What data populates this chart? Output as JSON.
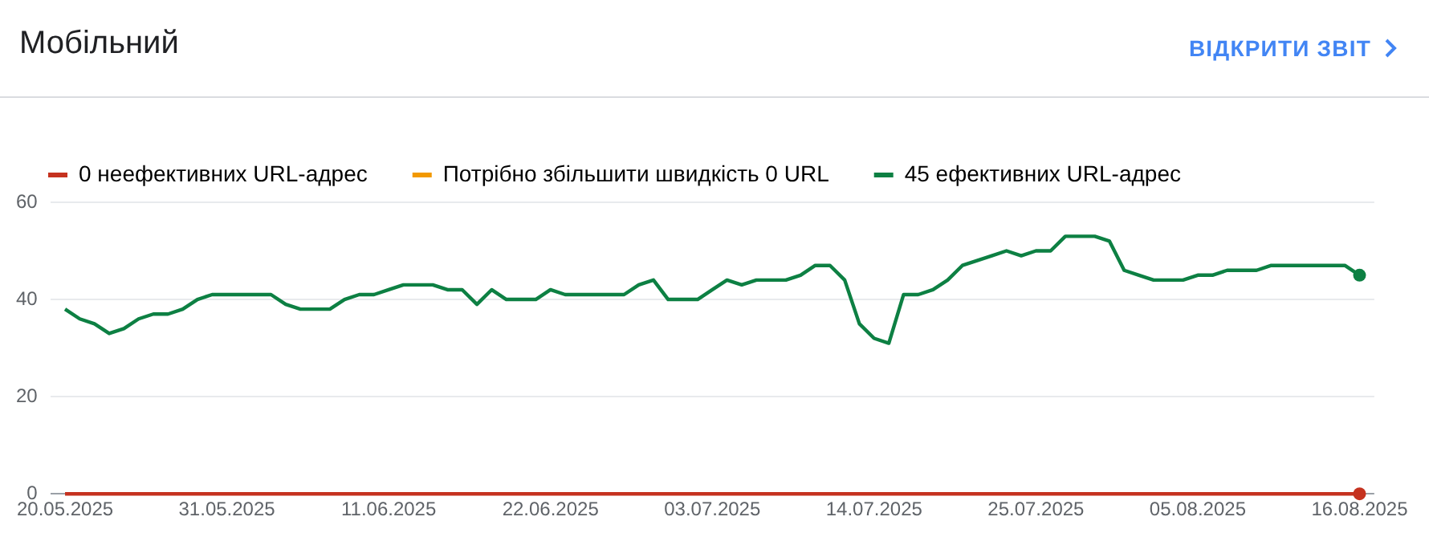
{
  "chart_data": {
    "type": "line",
    "title": "Мобільний",
    "annotations": [
      "ВІДКРИТИ ЗВІТ"
    ],
    "x": [
      "2025-05-20",
      "2025-05-21",
      "2025-05-22",
      "2025-05-23",
      "2025-05-24",
      "2025-05-25",
      "2025-05-26",
      "2025-05-27",
      "2025-05-28",
      "2025-05-29",
      "2025-05-30",
      "2025-05-31",
      "2025-06-01",
      "2025-06-02",
      "2025-06-03",
      "2025-06-04",
      "2025-06-05",
      "2025-06-06",
      "2025-06-07",
      "2025-06-08",
      "2025-06-09",
      "2025-06-10",
      "2025-06-11",
      "2025-06-12",
      "2025-06-13",
      "2025-06-14",
      "2025-06-15",
      "2025-06-16",
      "2025-06-17",
      "2025-06-18",
      "2025-06-19",
      "2025-06-20",
      "2025-06-21",
      "2025-06-22",
      "2025-06-23",
      "2025-06-24",
      "2025-06-25",
      "2025-06-26",
      "2025-06-27",
      "2025-06-28",
      "2025-06-29",
      "2025-06-30",
      "2025-07-01",
      "2025-07-02",
      "2025-07-03",
      "2025-07-04",
      "2025-07-05",
      "2025-07-06",
      "2025-07-07",
      "2025-07-08",
      "2025-07-09",
      "2025-07-10",
      "2025-07-11",
      "2025-07-12",
      "2025-07-13",
      "2025-07-14",
      "2025-07-15",
      "2025-07-16",
      "2025-07-17",
      "2025-07-18",
      "2025-07-19",
      "2025-07-20",
      "2025-07-21",
      "2025-07-22",
      "2025-07-23",
      "2025-07-24",
      "2025-07-25",
      "2025-07-26",
      "2025-07-27",
      "2025-07-28",
      "2025-07-29",
      "2025-07-30",
      "2025-07-31",
      "2025-08-01",
      "2025-08-02",
      "2025-08-03",
      "2025-08-04",
      "2025-08-05",
      "2025-08-06",
      "2025-08-07",
      "2025-08-08",
      "2025-08-09",
      "2025-08-10",
      "2025-08-11",
      "2025-08-12",
      "2025-08-13",
      "2025-08-14",
      "2025-08-15",
      "2025-08-16"
    ],
    "series": [
      {
        "name": "0 неефективних URL-адрес",
        "color": "#c5321f",
        "values": [
          0,
          0,
          0,
          0,
          0,
          0,
          0,
          0,
          0,
          0,
          0,
          0,
          0,
          0,
          0,
          0,
          0,
          0,
          0,
          0,
          0,
          0,
          0,
          0,
          0,
          0,
          0,
          0,
          0,
          0,
          0,
          0,
          0,
          0,
          0,
          0,
          0,
          0,
          0,
          0,
          0,
          0,
          0,
          0,
          0,
          0,
          0,
          0,
          0,
          0,
          0,
          0,
          0,
          0,
          0,
          0,
          0,
          0,
          0,
          0,
          0,
          0,
          0,
          0,
          0,
          0,
          0,
          0,
          0,
          0,
          0,
          0,
          0,
          0,
          0,
          0,
          0,
          0,
          0,
          0,
          0,
          0,
          0,
          0,
          0,
          0,
          0,
          0,
          0
        ]
      },
      {
        "name": "Потрібно збільшити швидкість 0 URL",
        "color": "#f29900",
        "values": [
          null,
          null,
          null,
          null,
          null,
          null,
          null,
          null,
          null,
          null,
          null,
          null,
          null,
          null,
          null,
          null,
          null,
          null,
          null,
          null,
          null,
          null,
          null,
          null,
          null,
          null,
          null,
          null,
          null,
          null,
          null,
          null,
          null,
          null,
          null,
          null,
          null,
          null,
          null,
          null,
          null,
          null,
          null,
          null,
          null,
          null,
          null,
          null,
          null,
          null,
          null,
          null,
          null,
          null,
          null,
          null,
          null,
          null,
          null,
          null,
          null,
          null,
          null,
          null,
          null,
          null,
          null,
          null,
          null,
          null,
          null,
          null,
          null,
          null,
          null,
          null,
          null,
          null,
          null,
          null,
          null,
          null,
          null,
          null,
          null,
          null,
          null,
          null,
          null
        ]
      },
      {
        "name": "45 ефективних URL-адрес",
        "color": "#0d8043",
        "values": [
          38,
          36,
          35,
          33,
          34,
          36,
          37,
          37,
          38,
          40,
          41,
          41,
          41,
          41,
          41,
          39,
          38,
          38,
          38,
          40,
          41,
          41,
          42,
          43,
          43,
          43,
          42,
          42,
          39,
          42,
          40,
          40,
          40,
          42,
          41,
          41,
          41,
          41,
          41,
          43,
          44,
          40,
          40,
          40,
          42,
          44,
          43,
          44,
          44,
          44,
          45,
          47,
          47,
          44,
          35,
          32,
          31,
          41,
          41,
          42,
          44,
          47,
          48,
          49,
          50,
          49,
          50,
          50,
          53,
          53,
          53,
          52,
          46,
          45,
          44,
          44,
          44,
          45,
          45,
          46,
          46,
          46,
          47,
          47,
          47,
          47,
          47,
          47,
          45
        ]
      }
    ],
    "xlim": [
      "2025-05-19",
      "2025-08-17"
    ],
    "xticks": [
      {
        "value": "2025-05-20",
        "label": "20.05.2025"
      },
      {
        "value": "2025-05-31",
        "label": "31.05.2025"
      },
      {
        "value": "2025-06-11",
        "label": "11.06.2025"
      },
      {
        "value": "2025-06-22",
        "label": "22.06.2025"
      },
      {
        "value": "2025-07-03",
        "label": "03.07.2025"
      },
      {
        "value": "2025-07-14",
        "label": "14.07.2025"
      },
      {
        "value": "2025-07-25",
        "label": "25.07.2025"
      },
      {
        "value": "2025-08-05",
        "label": "05.08.2025"
      },
      {
        "value": "2025-08-16",
        "label": "16.08.2025"
      }
    ],
    "ylim": [
      0,
      60
    ],
    "yticks": [
      0,
      20,
      40,
      60
    ],
    "grid": "y",
    "legend": "top left",
    "marker": "none",
    "line_style": "solid"
  }
}
